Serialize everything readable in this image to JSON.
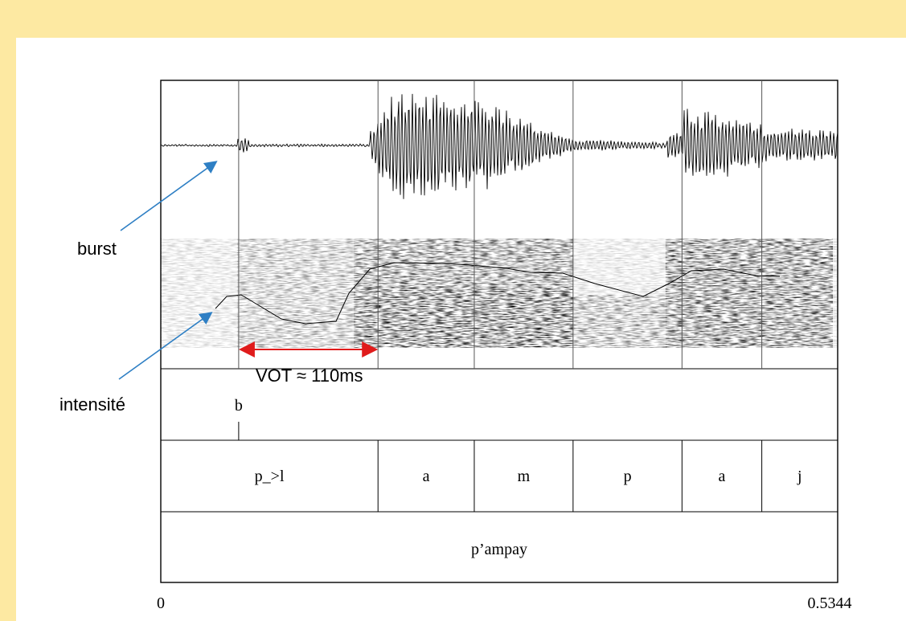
{
  "annotations": {
    "burst": "burst",
    "intensity": "intensité",
    "vot": "VOT ≈ 110ms"
  },
  "tiers": {
    "event": {
      "label": "b",
      "time": 0.0615
    },
    "phones": [
      {
        "label": "p_>l",
        "start": 0.0,
        "end": 0.1715
      },
      {
        "label": "a",
        "start": 0.1715,
        "end": 0.2475
      },
      {
        "label": "m",
        "start": 0.2475,
        "end": 0.3255
      },
      {
        "label": "p",
        "start": 0.3255,
        "end": 0.4115
      },
      {
        "label": "a",
        "start": 0.4115,
        "end": 0.4745
      },
      {
        "label": "j",
        "start": 0.4745,
        "end": 0.5344
      }
    ],
    "word": {
      "label": "p’ampay",
      "start": 0.0,
      "end": 0.5344
    }
  },
  "time_axis": {
    "start_label": "0",
    "end_label": "0.5344",
    "min": 0,
    "max": 0.5344
  },
  "vot_interval": {
    "start": 0.0615,
    "end": 0.1715
  },
  "colors": {
    "background": "#fde9a2",
    "arrow_blue": "#2e7fc4",
    "vot_red": "#e01b1b",
    "ink": "#000000"
  }
}
